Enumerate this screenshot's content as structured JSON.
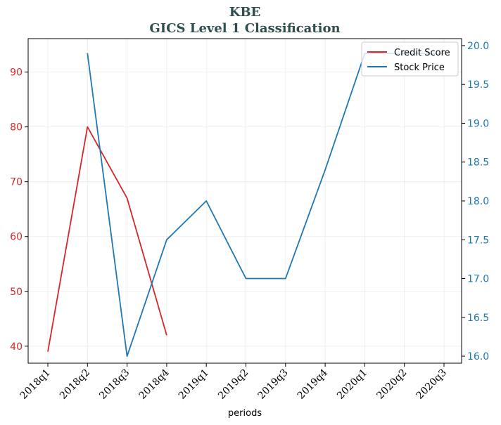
{
  "chart_data": {
    "type": "line",
    "title": "KBE",
    "subtitle": "GICS Level 1 Classification",
    "xlabel": "periods",
    "categories": [
      "2018q1",
      "2018q2",
      "2018q3",
      "2018q4",
      "2019q1",
      "2019q2",
      "2019q3",
      "2019q4",
      "2020q1",
      "2020q2",
      "2020q3"
    ],
    "series": [
      {
        "name": "Credit Score",
        "axis": "left",
        "color": "#d62728",
        "values": [
          39,
          80,
          67,
          42,
          null,
          null,
          null,
          null,
          null,
          null,
          null
        ]
      },
      {
        "name": "Stock Price",
        "axis": "right",
        "color": "#1f77b4",
        "values": [
          null,
          19.9,
          16.0,
          17.5,
          18.0,
          17.0,
          17.0,
          18.4,
          19.9,
          19.9,
          19.9
        ]
      }
    ],
    "left_axis": {
      "ylim": [
        36.9,
        96.1
      ],
      "ticks": [
        40,
        50,
        60,
        70,
        80,
        90
      ],
      "color": "#d62728"
    },
    "right_axis": {
      "ylim": [
        15.91,
        20.09
      ],
      "ticks": [
        "16.0",
        "16.5",
        "17.0",
        "17.5",
        "18.0",
        "18.5",
        "19.0",
        "19.5",
        "20.0"
      ],
      "color": "#1f77b4"
    },
    "grid": true,
    "legend_position": "top-right"
  }
}
